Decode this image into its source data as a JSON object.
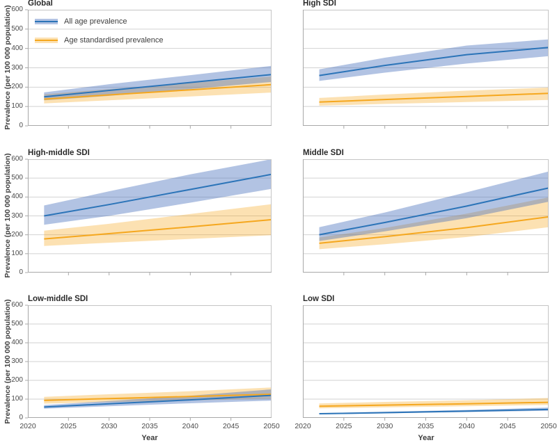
{
  "figure": {
    "ylabel": "Prevalence (per 100 000 population)",
    "xlabel": "Year",
    "legend": [
      {
        "label": "All age prevalence",
        "series": "all_age"
      },
      {
        "label": "Age standardised prevalence",
        "series": "age_standardised"
      }
    ],
    "x_tick_labels": [
      "2020",
      "2025",
      "2030",
      "2035",
      "2040",
      "2045",
      "2050"
    ],
    "y_tick_labels": [
      "0",
      "100",
      "200",
      "300",
      "400",
      "500",
      "600"
    ],
    "colors": {
      "blue_line": "#2b74b8",
      "blue_band": "rgba(72,112,188,0.42)",
      "orange_line": "#f5a71e",
      "orange_band": "rgba(246,166,28,0.34)",
      "grid": "#d2d2d2",
      "spine_light": "#c4c4c4",
      "spine_dark": "#a8a8a8",
      "tick_text": "#4a4a4a"
    }
  },
  "chart_data": [
    {
      "type": "line",
      "title": "Global",
      "x": [
        2022,
        2030,
        2040,
        2050
      ],
      "xlim": [
        2020,
        2050
      ],
      "ylim": [
        0,
        600
      ],
      "series": [
        {
          "name": "All age prevalence",
          "color_key": "blue",
          "values": [
            150,
            183,
            224,
            265
          ],
          "ci_lower": [
            132,
            155,
            190,
            227
          ],
          "ci_upper": [
            173,
            215,
            262,
            310
          ]
        },
        {
          "name": "Age standardised prevalence",
          "color_key": "orange",
          "values": [
            138,
            160,
            186,
            213
          ],
          "ci_lower": [
            116,
            132,
            152,
            172
          ],
          "ci_upper": [
            163,
            190,
            222,
            255
          ]
        }
      ]
    },
    {
      "type": "line",
      "title": "High SDI",
      "x": [
        2022,
        2030,
        2040,
        2050
      ],
      "xlim": [
        2020,
        2050
      ],
      "ylim": [
        0,
        600
      ],
      "series": [
        {
          "name": "All age prevalence",
          "color_key": "blue",
          "values": [
            260,
            312,
            368,
            405
          ],
          "ci_lower": [
            232,
            275,
            322,
            360
          ],
          "ci_upper": [
            292,
            352,
            415,
            447
          ]
        },
        {
          "name": "Age standardised prevalence",
          "color_key": "orange",
          "values": [
            123,
            136,
            152,
            168
          ],
          "ci_lower": [
            104,
            113,
            123,
            134
          ],
          "ci_upper": [
            144,
            162,
            182,
            198
          ]
        }
      ]
    },
    {
      "type": "line",
      "title": "High-middle SDI",
      "x": [
        2022,
        2030,
        2040,
        2050
      ],
      "xlim": [
        2020,
        2050
      ],
      "ylim": [
        0,
        600
      ],
      "series": [
        {
          "name": "All age prevalence",
          "color_key": "blue",
          "values": [
            300,
            360,
            440,
            520
          ],
          "ci_lower": [
            253,
            300,
            370,
            443
          ],
          "ci_upper": [
            355,
            430,
            520,
            600
          ]
        },
        {
          "name": "Age standardised prevalence",
          "color_key": "orange",
          "values": [
            178,
            206,
            242,
            280
          ],
          "ci_lower": [
            141,
            158,
            178,
            198
          ],
          "ci_upper": [
            222,
            258,
            310,
            362
          ]
        }
      ]
    },
    {
      "type": "line",
      "title": "Middle SDI",
      "x": [
        2022,
        2030,
        2040,
        2050
      ],
      "xlim": [
        2020,
        2050
      ],
      "ylim": [
        0,
        600
      ],
      "series": [
        {
          "name": "All age prevalence",
          "color_key": "blue",
          "values": [
            200,
            265,
            352,
            448
          ],
          "ci_lower": [
            167,
            218,
            288,
            375
          ],
          "ci_upper": [
            240,
            318,
            425,
            535
          ]
        },
        {
          "name": "Age standardised prevalence",
          "color_key": "orange",
          "values": [
            155,
            190,
            238,
            295
          ],
          "ci_lower": [
            124,
            150,
            188,
            240
          ],
          "ci_upper": [
            186,
            236,
            312,
            398
          ]
        }
      ]
    },
    {
      "type": "line",
      "title": "Low-middle SDI",
      "x": [
        2022,
        2030,
        2040,
        2050
      ],
      "xlim": [
        2020,
        2050
      ],
      "ylim": [
        0,
        600
      ],
      "series": [
        {
          "name": "All age prevalence",
          "color_key": "blue",
          "values": [
            58,
            75,
            96,
            120
          ],
          "ci_lower": [
            49,
            62,
            78,
            92
          ],
          "ci_upper": [
            68,
            90,
            118,
            152
          ]
        },
        {
          "name": "Age standardised prevalence",
          "color_key": "orange",
          "values": [
            93,
            103,
            114,
            126
          ],
          "ci_lower": [
            76,
            84,
            93,
            102
          ],
          "ci_upper": [
            112,
            126,
            142,
            162
          ]
        }
      ]
    },
    {
      "type": "line",
      "title": "Low SDI",
      "x": [
        2022,
        2030,
        2040,
        2050
      ],
      "xlim": [
        2020,
        2050
      ],
      "ylim": [
        0,
        600
      ],
      "series": [
        {
          "name": "All age prevalence",
          "color_key": "blue",
          "values": [
            22,
            28,
            36,
            45
          ],
          "ci_lower": [
            19,
            24,
            31,
            38
          ],
          "ci_upper": [
            25,
            33,
            42,
            55
          ]
        },
        {
          "name": "Age standardised prevalence",
          "color_key": "orange",
          "values": [
            62,
            68,
            75,
            83
          ],
          "ci_lower": [
            51,
            56,
            62,
            69
          ],
          "ci_upper": [
            77,
            85,
            94,
            106
          ]
        }
      ]
    }
  ]
}
